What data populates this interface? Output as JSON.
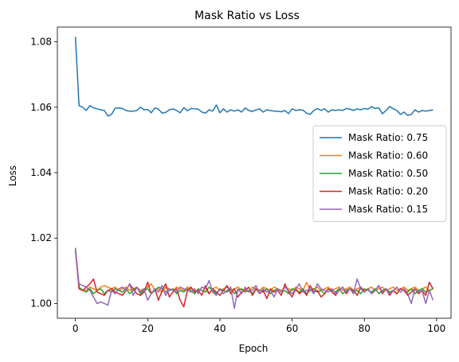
{
  "chart_data": {
    "type": "line",
    "title": "Mask Ratio vs Loss",
    "xlabel": "Epoch",
    "ylabel": "Loss",
    "xlim": [
      -5,
      104
    ],
    "ylim": [
      0.9955,
      1.0845
    ],
    "xticks": [
      0,
      20,
      40,
      60,
      80,
      100
    ],
    "yticks": [
      1.0,
      1.02,
      1.04,
      1.06,
      1.08
    ],
    "ytick_labels": [
      "1.00",
      "1.02",
      "1.04",
      "1.06",
      "1.08"
    ],
    "grid": false,
    "legend_position": "center-right",
    "series": [
      {
        "name": "Mask Ratio: 0.75",
        "color": "#1f77b4",
        "values": [
          1.0815,
          1.0605,
          1.06,
          1.059,
          1.0605,
          1.0598,
          1.0595,
          1.0592,
          1.059,
          1.0573,
          1.0578,
          1.0597,
          1.0598,
          1.0596,
          1.059,
          1.0588,
          1.0588,
          1.059,
          1.06,
          1.0592,
          1.0593,
          1.0583,
          1.0598,
          1.0594,
          1.0582,
          1.0584,
          1.0592,
          1.0595,
          1.059,
          1.0583,
          1.0599,
          1.0589,
          1.0596,
          1.0595,
          1.0594,
          1.0585,
          1.0582,
          1.0592,
          1.0588,
          1.0607,
          1.0583,
          1.0595,
          1.0585,
          1.0592,
          1.0588,
          1.0592,
          1.0585,
          1.0598,
          1.059,
          1.0587,
          1.0592,
          1.0595,
          1.0585,
          1.0592,
          1.059,
          1.0588,
          1.0588,
          1.0586,
          1.059,
          1.058,
          1.0595,
          1.059,
          1.0592,
          1.0591,
          1.0582,
          1.0578,
          1.059,
          1.0596,
          1.059,
          1.0595,
          1.0585,
          1.0592,
          1.059,
          1.0592,
          1.059,
          1.0596,
          1.0594,
          1.059,
          1.0595,
          1.0592,
          1.0596,
          1.0594,
          1.0602,
          1.0596,
          1.0598,
          1.058,
          1.059,
          1.0602,
          1.0595,
          1.059,
          1.0578,
          1.0585,
          1.0575,
          1.0578,
          1.0592,
          1.0585,
          1.059,
          1.0588,
          1.059,
          1.0592
        ]
      },
      {
        "name": "Mask Ratio: 0.60",
        "color": "#ff7f0e",
        "values": [
          1.016,
          1.005,
          1.004,
          1.004,
          1.005,
          1.0045,
          1.004,
          1.005,
          1.0055,
          1.005,
          1.0045,
          1.005,
          1.004,
          1.0045,
          1.005,
          1.004,
          1.0045,
          1.005,
          1.004,
          1.0045,
          1.005,
          1.006,
          1.004,
          1.0045,
          1.0035,
          1.005,
          1.0045,
          1.004,
          1.005,
          1.0045,
          1.004,
          1.005,
          1.0045,
          1.004,
          1.0035,
          1.005,
          1.0045,
          1.003,
          1.0045,
          1.005,
          1.004,
          1.0045,
          1.005,
          1.004,
          1.0045,
          1.005,
          1.004,
          1.0045,
          1.0035,
          1.005,
          1.0045,
          1.004,
          1.005,
          1.0045,
          1.004,
          1.005,
          1.0045,
          1.004,
          1.005,
          1.0045,
          1.004,
          1.005,
          1.0045,
          1.004,
          1.0065,
          1.004,
          1.0045,
          1.005,
          1.004,
          1.0045,
          1.005,
          1.004,
          1.0045,
          1.005,
          1.004,
          1.0045,
          1.005,
          1.004,
          1.0045,
          1.005,
          1.004,
          1.0045,
          1.005,
          1.004,
          1.0045,
          1.005,
          1.004,
          1.0045,
          1.005,
          1.004,
          1.0045,
          1.005,
          1.004,
          1.0045,
          1.005,
          1.004,
          1.0045,
          1.005,
          1.004,
          1.0045
        ]
      },
      {
        "name": "Mask Ratio: 0.50",
        "color": "#2ca02c",
        "values": [
          1.017,
          1.005,
          1.004,
          1.0035,
          1.0045,
          1.003,
          1.004,
          1.0045,
          1.003,
          1.004,
          1.0035,
          1.0045,
          1.004,
          1.0035,
          1.0045,
          1.003,
          1.004,
          1.005,
          1.003,
          1.004,
          1.0045,
          1.003,
          1.004,
          1.005,
          1.0045,
          1.0035,
          1.004,
          1.0045,
          1.003,
          1.004,
          1.0035,
          1.0045,
          1.004,
          1.003,
          1.0045,
          1.004,
          1.0035,
          1.005,
          1.004,
          1.003,
          1.0045,
          1.004,
          1.0035,
          1.0045,
          1.003,
          1.004,
          1.0045,
          1.0035,
          1.004,
          1.003,
          1.0045,
          1.004,
          1.0035,
          1.0045,
          1.003,
          1.004,
          1.0045,
          1.0035,
          1.004,
          1.003,
          1.0045,
          1.004,
          1.0035,
          1.0045,
          1.003,
          1.004,
          1.0045,
          1.0035,
          1.004,
          1.003,
          1.0045,
          1.004,
          1.0035,
          1.0045,
          1.003,
          1.004,
          1.0045,
          1.0035,
          1.004,
          1.003,
          1.0045,
          1.004,
          1.0035,
          1.0045,
          1.003,
          1.004,
          1.0045,
          1.0035,
          1.004,
          1.003,
          1.0045,
          1.004,
          1.0035,
          1.0045,
          1.003,
          1.004,
          1.0045,
          1.0035,
          1.004,
          1.0045
        ]
      },
      {
        "name": "Mask Ratio: 0.20",
        "color": "#d62728",
        "values": [
          1.0165,
          1.0045,
          1.004,
          1.005,
          1.006,
          1.0075,
          1.0035,
          1.003,
          1.0025,
          1.004,
          1.0045,
          1.0035,
          1.003,
          1.0025,
          1.004,
          1.006,
          1.0045,
          1.003,
          1.0025,
          1.0035,
          1.0065,
          1.003,
          1.0045,
          1.001,
          1.004,
          1.006,
          1.002,
          1.0035,
          1.0045,
          1.001,
          0.999,
          1.004,
          1.005,
          1.0035,
          1.004,
          1.0025,
          1.0055,
          1.003,
          1.0045,
          1.0035,
          1.0025,
          1.004,
          1.0055,
          1.003,
          1.0045,
          1.002,
          1.0035,
          1.004,
          1.005,
          1.0025,
          1.0045,
          1.003,
          1.004,
          1.0015,
          1.0045,
          1.0035,
          1.004,
          1.0025,
          1.006,
          1.0035,
          1.002,
          1.0045,
          1.003,
          1.004,
          1.0025,
          1.0055,
          1.0035,
          1.004,
          1.002,
          1.003,
          1.0045,
          1.0035,
          1.0025,
          1.004,
          1.005,
          1.003,
          1.0045,
          1.004,
          1.0025,
          1.005,
          1.0035,
          1.0045,
          1.003,
          1.004,
          1.0055,
          1.003,
          1.0045,
          1.0025,
          1.004,
          1.003,
          1.0045,
          1.004,
          1.0025,
          1.0035,
          1.0045,
          1.003,
          1.004,
          1.0025,
          1.0065,
          1.0045
        ]
      },
      {
        "name": "Mask Ratio: 0.15",
        "color": "#9467bd",
        "values": [
          1.0165,
          1.006,
          1.0055,
          1.005,
          1.004,
          1.002,
          1.0,
          1.0005,
          1.0,
          0.9995,
          1.004,
          1.003,
          1.0045,
          1.005,
          1.004,
          1.006,
          1.0025,
          1.005,
          1.0035,
          1.0045,
          1.001,
          1.003,
          1.0045,
          1.0035,
          1.0055,
          1.0025,
          1.0045,
          1.004,
          1.0035,
          1.005,
          1.0045,
          1.004,
          1.0035,
          1.0045,
          1.003,
          1.005,
          1.0045,
          1.007,
          1.0035,
          1.0025,
          1.0045,
          1.003,
          1.004,
          1.005,
          0.9985,
          1.0045,
          1.003,
          1.005,
          1.0035,
          1.004,
          1.0055,
          1.003,
          1.0045,
          1.0035,
          1.004,
          1.002,
          1.0045,
          1.0035,
          1.005,
          1.004,
          1.003,
          1.0045,
          1.006,
          1.0035,
          1.004,
          1.0045,
          1.003,
          1.006,
          1.0045,
          1.004,
          1.0035,
          1.0045,
          1.003,
          1.004,
          1.005,
          1.0035,
          1.0045,
          1.003,
          1.0075,
          1.0045,
          1.0035,
          1.0045,
          1.003,
          1.004,
          1.0055,
          1.0035,
          1.0045,
          1.003,
          1.004,
          1.005,
          1.0035,
          1.0045,
          1.003,
          1.0,
          1.0045,
          1.0035,
          1.004,
          1.0,
          1.004,
          1.001
        ]
      }
    ]
  }
}
